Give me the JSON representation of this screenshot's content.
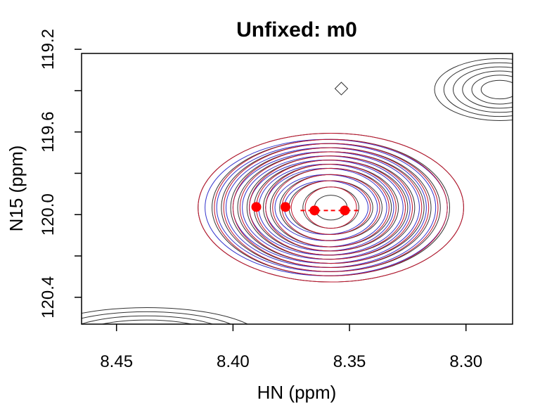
{
  "chart_data": {
    "type": "scatter",
    "title": "Unfixed: m0",
    "xlabel": "HN (ppm)",
    "ylabel": "N15 (ppm)",
    "x_reversed": true,
    "y_reversed": true,
    "xlim": [
      8.465,
      8.28
    ],
    "ylim": [
      119.22,
      120.53
    ],
    "x_ticks": [
      8.45,
      8.4,
      8.35,
      8.3
    ],
    "x_tick_labels": [
      "8.45",
      "8.40",
      "8.35",
      "8.30"
    ],
    "y_ticks": [
      119.2,
      119.4,
      119.6,
      119.8,
      120.0,
      120.2,
      120.4
    ],
    "y_tick_labels": [
      "119.2",
      "",
      "119.6",
      "",
      "120.0",
      "",
      "120.4"
    ],
    "grid": false,
    "points": {
      "color": "#ff0000",
      "x": [
        8.39,
        8.3775,
        8.365,
        8.352
      ],
      "y": [
        119.963,
        119.963,
        119.98,
        119.98
      ],
      "x_err": [
        0,
        0,
        0.006,
        0.006
      ]
    },
    "contour_sets": [
      {
        "color": "#333333",
        "cx": 8.358,
        "cy": 119.966,
        "rx": [
          0.057,
          0.051,
          0.047,
          0.043,
          0.04,
          0.036,
          0.033,
          0.029,
          0.026,
          0.022,
          0.018,
          0.012,
          0.007
        ],
        "ry": [
          0.36,
          0.33,
          0.31,
          0.29,
          0.27,
          0.25,
          0.23,
          0.21,
          0.19,
          0.16,
          0.13,
          0.1,
          0.06
        ]
      },
      {
        "color": "#3333cc",
        "cx": 8.36,
        "cy": 119.966,
        "rx": [
          0.052,
          0.047,
          0.043,
          0.04,
          0.036,
          0.033,
          0.029,
          0.026,
          0.022,
          0.018
        ],
        "ry": [
          0.33,
          0.31,
          0.29,
          0.27,
          0.25,
          0.23,
          0.21,
          0.19,
          0.16,
          0.13
        ]
      },
      {
        "color": "#c0142c",
        "cx": 8.358,
        "cy": 119.966,
        "rx": [
          0.057,
          0.05,
          0.046,
          0.042,
          0.039,
          0.035,
          0.032,
          0.028,
          0.025,
          0.021,
          0.017,
          0.011
        ],
        "ry": [
          0.36,
          0.33,
          0.31,
          0.29,
          0.27,
          0.25,
          0.23,
          0.21,
          0.19,
          0.16,
          0.13,
          0.1
        ]
      },
      {
        "color": "#333333",
        "cx": 8.2855,
        "cy": 119.395,
        "rx": [
          0.028,
          0.024,
          0.02,
          0.016,
          0.012,
          0.008
        ],
        "ry": [
          0.15,
          0.13,
          0.11,
          0.09,
          0.07,
          0.045
        ]
      },
      {
        "color": "#333333",
        "cx": 8.437,
        "cy": 120.61,
        "rx": [
          0.05,
          0.044,
          0.038,
          0.032,
          0.026,
          0.02
        ],
        "ry": [
          0.16,
          0.14,
          0.12,
          0.1,
          0.08,
          0.06
        ]
      }
    ],
    "small_diamond": {
      "color": "#333333",
      "x": 8.3535,
      "y": 119.39
    }
  }
}
